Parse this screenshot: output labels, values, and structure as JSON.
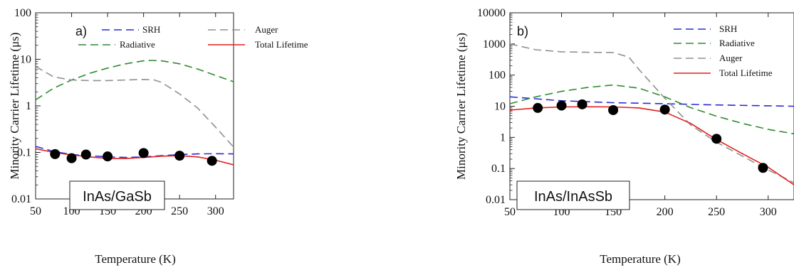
{
  "chart_data": [
    {
      "type": "line",
      "panel_label": "a)",
      "material_label": "InAs/GaSb",
      "xlabel": "Temperature (K)",
      "ylabel": "Minority Carrier Lifetime (μs)",
      "xlim": [
        50,
        325
      ],
      "ylim": [
        0.01,
        100
      ],
      "y_scale": "log",
      "x_ticks": [
        50,
        100,
        150,
        200,
        250,
        300
      ],
      "y_ticks": [
        0.01,
        0.1,
        1,
        10,
        100
      ],
      "y_tick_labels": [
        "0.01",
        "0.1",
        "1",
        "10",
        "100"
      ],
      "legend_position": "top",
      "series": [
        {
          "name": "SRH",
          "style": "dashed",
          "color": "#2a2ad8",
          "x": [
            50,
            75,
            100,
            125,
            150,
            175,
            200,
            225,
            250,
            275,
            300,
            325
          ],
          "y": [
            0.135,
            0.105,
            0.09,
            0.085,
            0.08,
            0.078,
            0.08,
            0.085,
            0.09,
            0.093,
            0.094,
            0.093
          ]
        },
        {
          "name": "Radiative",
          "style": "dashed",
          "color": "#2e8b2e",
          "x": [
            50,
            75,
            100,
            125,
            150,
            175,
            200,
            210,
            225,
            250,
            275,
            300,
            325
          ],
          "y": [
            1.35,
            2.4,
            3.6,
            5.0,
            6.5,
            8.0,
            9.3,
            9.5,
            9.3,
            8.0,
            6.2,
            4.5,
            3.3
          ]
        },
        {
          "name": "Auger",
          "style": "dashed",
          "color": "#909090",
          "x": [
            50,
            75,
            100,
            125,
            150,
            175,
            200,
            215,
            225,
            250,
            275,
            300,
            325
          ],
          "y": [
            7.0,
            4.2,
            3.6,
            3.5,
            3.5,
            3.6,
            3.7,
            3.6,
            3.2,
            1.8,
            0.9,
            0.35,
            0.13
          ]
        },
        {
          "name": "Total Lifetime",
          "style": "solid",
          "color": "#e0201c",
          "x": [
            50,
            75,
            100,
            125,
            150,
            175,
            200,
            225,
            250,
            275,
            300,
            325
          ],
          "y": [
            0.12,
            0.1,
            0.088,
            0.08,
            0.074,
            0.074,
            0.078,
            0.083,
            0.085,
            0.08,
            0.068,
            0.054
          ]
        },
        {
          "name": "",
          "style": "markers",
          "color": "#000000",
          "x": [
            77,
            100,
            120,
            150,
            200,
            250,
            295
          ],
          "y": [
            0.092,
            0.075,
            0.09,
            0.082,
            0.097,
            0.085,
            0.066
          ]
        }
      ]
    },
    {
      "type": "line",
      "panel_label": "b)",
      "material_label": "InAs/InAsSb",
      "xlabel": "Temperature (K)",
      "ylabel": "Minority Carrier Lifetime (μs)",
      "xlim": [
        50,
        325
      ],
      "ylim": [
        0.01,
        10000
      ],
      "y_scale": "log",
      "x_ticks": [
        50,
        100,
        150,
        200,
        250,
        300
      ],
      "y_ticks": [
        0.01,
        0.1,
        1,
        10,
        100,
        1000,
        10000
      ],
      "y_tick_labels": [
        "0.01",
        "0.1",
        "1",
        "10",
        "100",
        "1000",
        "10000"
      ],
      "legend_position": "top-right",
      "series": [
        {
          "name": "SRH",
          "style": "dashed",
          "color": "#2a2ad8",
          "x": [
            50,
            100,
            150,
            200,
            250,
            300,
            325
          ],
          "y": [
            20,
            15,
            13,
            12,
            11,
            10.3,
            10
          ]
        },
        {
          "name": "Radiative",
          "style": "dashed",
          "color": "#2e8b2e",
          "x": [
            50,
            75,
            100,
            125,
            150,
            175,
            200,
            225,
            250,
            275,
            300,
            325
          ],
          "y": [
            12,
            20,
            30,
            40,
            48,
            38,
            20,
            9,
            4.8,
            2.8,
            1.8,
            1.3
          ]
        },
        {
          "name": "Auger",
          "style": "dashed",
          "color": "#909090",
          "x": [
            50,
            75,
            100,
            125,
            150,
            165,
            175,
            200,
            225,
            250,
            275,
            300,
            325
          ],
          "y": [
            1000,
            650,
            560,
            540,
            530,
            380,
            150,
            18,
            2.5,
            0.7,
            0.25,
            0.09,
            0.035
          ]
        },
        {
          "name": "Total Lifetime",
          "style": "solid",
          "color": "#e0201c",
          "x": [
            50,
            75,
            100,
            125,
            150,
            175,
            200,
            225,
            250,
            275,
            300,
            325
          ],
          "y": [
            7.5,
            8.8,
            9.5,
            9.6,
            9.5,
            8.8,
            6.5,
            2.8,
            0.85,
            0.3,
            0.11,
            0.03
          ]
        },
        {
          "name": "",
          "style": "markers",
          "color": "#000000",
          "x": [
            77,
            100,
            120,
            150,
            200,
            250,
            295
          ],
          "y": [
            8.8,
            10.5,
            11.5,
            7.5,
            7.8,
            0.9,
            0.105
          ]
        }
      ]
    }
  ]
}
